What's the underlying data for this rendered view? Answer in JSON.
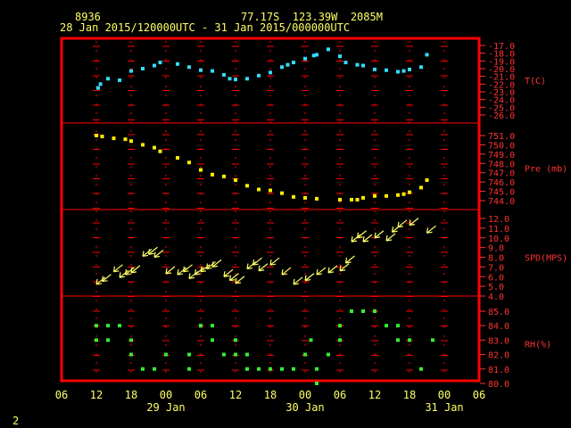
{
  "header": {
    "station_id": "8936",
    "location": "77.17S  123.39W  2085M",
    "time_range": "28 Jan 2015/120000UTC - 31 Jan 2015/000000UTC"
  },
  "footer": {
    "page_number": "2"
  },
  "colors": {
    "background": "#000000",
    "frame": "#ff0000",
    "axis_text": "#ffff66",
    "right_axis_text": "#ff3333",
    "temperature": "#33ddff",
    "pressure": "#ffee00",
    "wind": "#ffff66",
    "rh": "#33ee33"
  },
  "chart_data": [
    {
      "type": "scatter",
      "ylabel": "T(C)",
      "ylim": [
        -26,
        -17
      ],
      "yticks": [
        "-17.0",
        "-18.0",
        "-19.0",
        "-20.0",
        "-21.0",
        "-22.0",
        "-23.0",
        "-24.0",
        "-25.0",
        "-26.0"
      ],
      "x": [
        12.3,
        12.7,
        14,
        16,
        18,
        20,
        22,
        23,
        26,
        28,
        30,
        32,
        34,
        35,
        36,
        38,
        40,
        42,
        44,
        45,
        46,
        48,
        49.5,
        50,
        52,
        54,
        55,
        57,
        58,
        60,
        62,
        64,
        65,
        66,
        68,
        69
      ],
      "values": [
        -22.5,
        -22,
        -21.3,
        -21.5,
        -20.3,
        -20,
        -19.6,
        -19.2,
        -19.4,
        -19.8,
        -20.2,
        -20.3,
        -20.8,
        -21.3,
        -21.4,
        -21.3,
        -20.9,
        -20.5,
        -19.8,
        -19.5,
        -19.2,
        -18.7,
        -18.3,
        -18.2,
        -17.5,
        -18.4,
        -19.2,
        -19.5,
        -19.6,
        -20.1,
        -20.2,
        -20.4,
        -20.3,
        -20.1,
        -19.8,
        -18.2
      ]
    },
    {
      "type": "scatter",
      "ylabel": "Pre (mb)",
      "ylim": [
        744,
        751
      ],
      "yticks": [
        "751.0",
        "750.0",
        "749.0",
        "748.0",
        "747.0",
        "746.0",
        "745.0",
        "744.0"
      ],
      "x": [
        12,
        13,
        15,
        17,
        18,
        20,
        22,
        23,
        26,
        28,
        30,
        32,
        34,
        36,
        38,
        40,
        42,
        44,
        46,
        48,
        50,
        54,
        56,
        57,
        58,
        60,
        62,
        64,
        65,
        66,
        68,
        69
      ],
      "values": [
        751,
        750.9,
        750.7,
        750.6,
        750.4,
        750,
        749.7,
        749.3,
        748.6,
        748.1,
        747.3,
        746.8,
        746.6,
        746.2,
        745.6,
        745.2,
        745.1,
        744.8,
        744.4,
        744.3,
        744.2,
        744.1,
        744.1,
        744.1,
        744.3,
        744.5,
        744.5,
        744.6,
        744.7,
        744.9,
        745.4,
        746.2
      ]
    },
    {
      "type": "scatter",
      "ylabel": "SPD(MPS)",
      "ylim": [
        4,
        12
      ],
      "yticks": [
        "12.0",
        "11.0",
        "10.0",
        "9.0",
        "8.0",
        "7.0",
        "6.0",
        "5.0",
        "4.0"
      ],
      "x": [
        12,
        13,
        15,
        16,
        17,
        18,
        20,
        21,
        22,
        24,
        26,
        27,
        28,
        29,
        30,
        31,
        32,
        34,
        35,
        36,
        38,
        39,
        40,
        42,
        44,
        46,
        48,
        50,
        52,
        54,
        55,
        56,
        57,
        58,
        60,
        62,
        63,
        64,
        66,
        69
      ],
      "values": [
        5.2,
        5.5,
        6.5,
        5.9,
        6.2,
        6.4,
        8.1,
        8.3,
        8,
        6.3,
        6.2,
        6.5,
        5.8,
        6.2,
        6.5,
        6.8,
        7,
        6,
        5.6,
        5.3,
        6.8,
        7.2,
        6.6,
        7.2,
        6.2,
        5.2,
        5.6,
        6.2,
        6.4,
        6.6,
        7.4,
        9.6,
        10,
        9.6,
        10,
        9.7,
        10.6,
        11.1,
        11.3,
        10.5
      ]
    },
    {
      "type": "scatter",
      "ylabel": "RH(%)",
      "ylim": [
        80,
        85
      ],
      "yticks": [
        "85.0",
        "84.0",
        "83.0",
        "82.0",
        "81.0",
        "80.0"
      ],
      "x": [
        12,
        12,
        14,
        14,
        16,
        18,
        18,
        20,
        22,
        24,
        28,
        28,
        30,
        30,
        32,
        32,
        34,
        36,
        36,
        38,
        38,
        40,
        42,
        44,
        46,
        48,
        49,
        50,
        50,
        52,
        54,
        54,
        56,
        58,
        60,
        62,
        64,
        64,
        66,
        68,
        70
      ],
      "values": [
        84,
        83,
        84,
        83,
        84,
        83,
        82,
        81,
        81,
        82,
        81,
        82,
        84,
        84,
        84,
        83,
        82,
        83,
        82,
        81,
        82,
        81,
        81,
        81,
        81,
        82,
        83,
        80,
        81,
        82,
        84,
        83,
        85,
        85,
        85,
        84,
        84,
        83,
        83,
        81,
        83
      ]
    }
  ],
  "x_axis": {
    "tick_labels": [
      "06",
      "12",
      "18",
      "00",
      "06",
      "12",
      "18",
      "00",
      "06",
      "12",
      "18",
      "00",
      "06"
    ],
    "day_labels": [
      "29 Jan",
      "30 Jan",
      "31 Jan"
    ]
  }
}
